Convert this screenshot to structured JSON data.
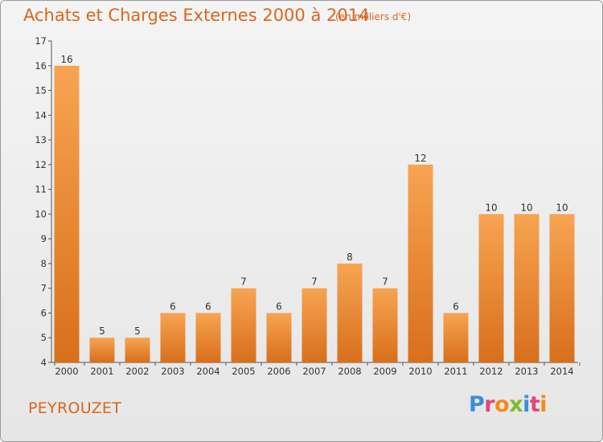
{
  "header": {
    "title": "Achats et Charges Externes 2000 à 2014",
    "subtitle": "(en milliers d'€)"
  },
  "commune": "PEYROUZET",
  "logo": {
    "text": "Proxiti",
    "letter_colors": [
      "#3b8fd6",
      "#e0467a",
      "#f28c1e",
      "#7cbc2b",
      "#3b8fd6",
      "#e0467a",
      "#f28c1e"
    ]
  },
  "chart_data": {
    "type": "bar",
    "title": "Achats et Charges Externes 2000 à 2014",
    "subtitle": "(en milliers d'€)",
    "categories": [
      "2000",
      "2001",
      "2002",
      "2003",
      "2004",
      "2005",
      "2006",
      "2007",
      "2008",
      "2009",
      "2010",
      "2011",
      "2012",
      "2013",
      "2014"
    ],
    "values": [
      16,
      5,
      5,
      6,
      6,
      7,
      6,
      7,
      8,
      7,
      12,
      6,
      10,
      10,
      10
    ],
    "ylim": [
      4,
      17
    ],
    "yticks": [
      4,
      5,
      6,
      7,
      8,
      9,
      10,
      11,
      12,
      13,
      14,
      15,
      16,
      17
    ],
    "xlabel": "",
    "ylabel": "",
    "grid": false,
    "bar_color": "#f39b45",
    "bar_color_dark": "#d9731d"
  }
}
